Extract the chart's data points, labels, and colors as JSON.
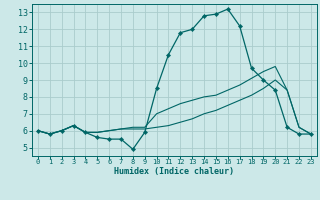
{
  "xlabel": "Humidex (Indice chaleur)",
  "bg_color": "#cce8e8",
  "grid_color": "#aacccc",
  "line_color": "#006666",
  "xlim": [
    -0.5,
    23.5
  ],
  "ylim": [
    4.5,
    13.5
  ],
  "xticks": [
    0,
    1,
    2,
    3,
    4,
    5,
    6,
    7,
    8,
    9,
    10,
    11,
    12,
    13,
    14,
    15,
    16,
    17,
    18,
    19,
    20,
    21,
    22,
    23
  ],
  "yticks": [
    5,
    6,
    7,
    8,
    9,
    10,
    11,
    12,
    13
  ],
  "x": [
    0,
    1,
    2,
    3,
    4,
    5,
    6,
    7,
    8,
    9,
    10,
    11,
    12,
    13,
    14,
    15,
    16,
    17,
    18,
    19,
    20,
    21,
    22,
    23
  ],
  "y_main": [
    6.0,
    5.8,
    6.0,
    6.3,
    5.9,
    5.6,
    5.5,
    5.5,
    4.9,
    5.9,
    8.5,
    10.5,
    11.8,
    12.0,
    12.8,
    12.9,
    13.2,
    12.2,
    9.7,
    9.0,
    8.4,
    6.2,
    5.8,
    5.8
  ],
  "y_line2": [
    6.0,
    5.8,
    6.0,
    6.3,
    5.9,
    5.9,
    6.0,
    6.1,
    6.1,
    6.1,
    6.2,
    6.3,
    6.5,
    6.7,
    7.0,
    7.2,
    7.5,
    7.8,
    8.1,
    8.5,
    9.0,
    8.4,
    6.2,
    5.8
  ],
  "y_line3": [
    6.0,
    5.8,
    6.0,
    6.3,
    5.9,
    5.9,
    6.0,
    6.1,
    6.2,
    6.2,
    7.0,
    7.3,
    7.6,
    7.8,
    8.0,
    8.1,
    8.4,
    8.7,
    9.1,
    9.5,
    9.8,
    8.4,
    6.2,
    5.8
  ]
}
